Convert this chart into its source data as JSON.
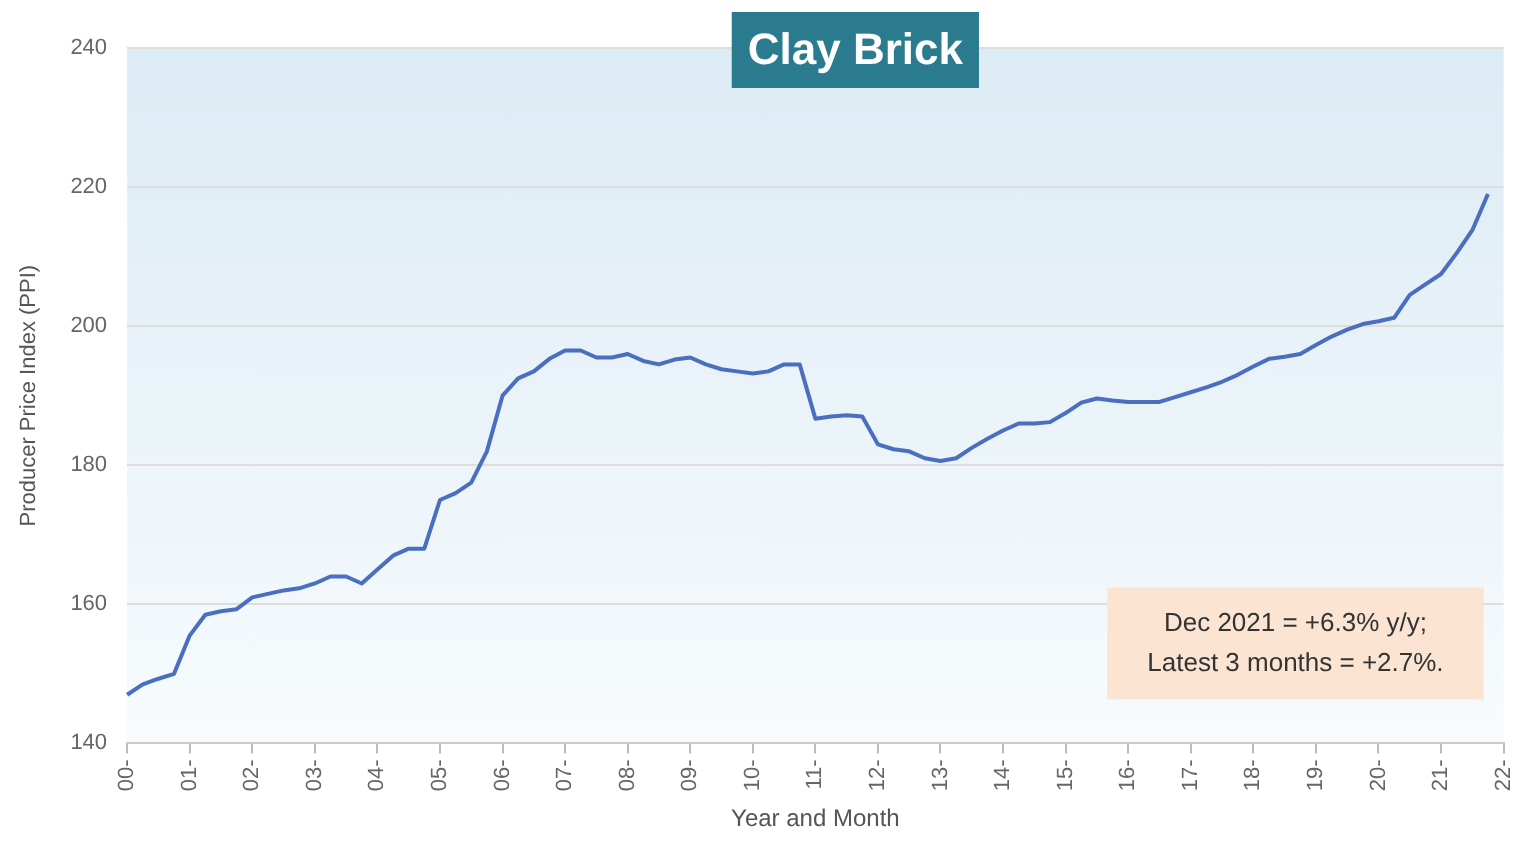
{
  "chart_data": {
    "type": "line",
    "title": "Clay Brick",
    "xlabel": "Year and Month",
    "ylabel": "Producer Price Index (PPI)",
    "annotations": [
      "Dec 2021 = +6.3% y/y;\nLatest 3 months = +2.7%."
    ],
    "categories": [
      "00-",
      null,
      null,
      null,
      "01-",
      null,
      null,
      null,
      "02-",
      null,
      null,
      null,
      "03-",
      null,
      null,
      null,
      "04-",
      null,
      null,
      null,
      "05-",
      null,
      null,
      null,
      "06-",
      null,
      null,
      null,
      "07-",
      null,
      null,
      null,
      "08-",
      null,
      null,
      null,
      "09-",
      null,
      null,
      null,
      "10-",
      null,
      null,
      null,
      "11-",
      null,
      null,
      null,
      "12-",
      null,
      null,
      null,
      "13-",
      null,
      null,
      null,
      "14-",
      null,
      null,
      null,
      "15-",
      null,
      null,
      null,
      "16-",
      null,
      null,
      null,
      "17-",
      null,
      null,
      null,
      "18-",
      null,
      null,
      null,
      "19-",
      null,
      null,
      null,
      "20-",
      null,
      null,
      null,
      "21-",
      null,
      null,
      null,
      "22-"
    ],
    "series": [
      {
        "color": "#4a6fbf",
        "values": [
          147,
          148.5,
          149.3,
          150,
          155.5,
          158.5,
          159,
          159.3,
          161,
          161.5,
          162,
          162.3,
          163,
          164,
          164,
          163,
          165,
          167,
          168,
          168,
          175,
          176,
          177.5,
          182,
          190,
          192.5,
          193.5,
          195.3,
          196.5,
          196.5,
          195.5,
          195.5,
          196,
          195,
          194.5,
          195.2,
          195.5,
          194.5,
          193.8,
          193.5,
          193.2,
          193.5,
          194.5,
          194.5,
          186.7,
          187,
          187.2,
          187,
          183,
          182.3,
          182,
          181,
          180.6,
          181,
          182.5,
          183.8,
          185,
          186,
          186,
          186.2,
          187.5,
          189,
          189.6,
          189.3,
          189.1,
          189.1,
          189.1,
          189.8,
          190.5,
          191.2,
          192,
          193,
          194.2,
          195.3,
          195.6,
          196,
          197.3,
          198.5,
          199.5,
          200.3,
          200.7,
          201.2,
          204.5,
          206,
          207.5,
          210.5,
          213.8,
          219,
          null
        ]
      }
    ],
    "ylim": [
      140,
      240
    ],
    "yticks": [
      140,
      160,
      180,
      200,
      220,
      240
    ],
    "grid": "y",
    "legend": false,
    "marker": "none",
    "line_style": "solid"
  }
}
